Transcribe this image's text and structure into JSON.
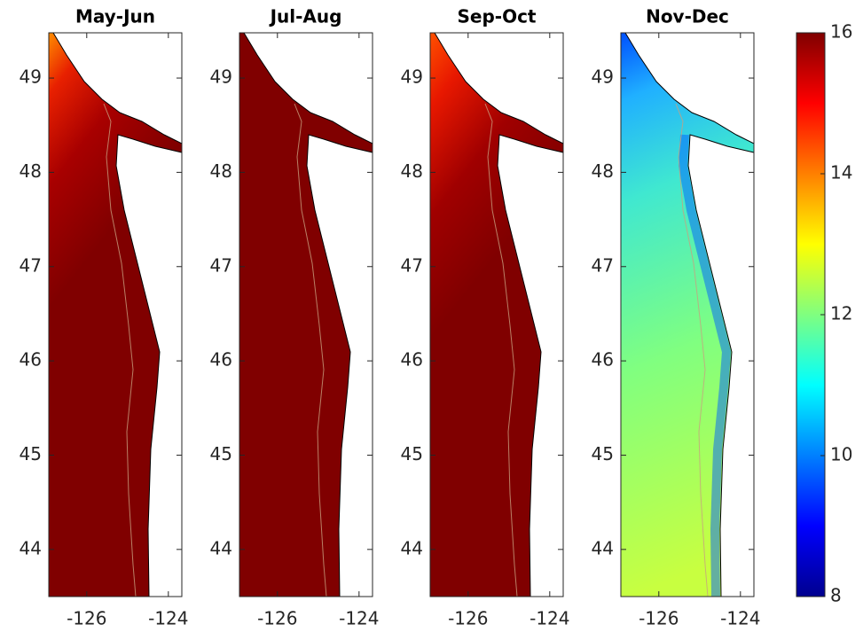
{
  "panels": [
    {
      "title": "May-Jun"
    },
    {
      "title": "Jul-Aug"
    },
    {
      "title": "Sep-Oct"
    },
    {
      "title": "Nov-Dec"
    }
  ],
  "axes": {
    "xlim": [
      -126.93,
      -123.67
    ],
    "ylim": [
      43.5,
      49.48
    ],
    "xticks": [
      -126,
      -124
    ],
    "yticks": [
      44,
      45,
      46,
      47,
      48,
      49
    ]
  },
  "colorbar": {
    "lim": [
      8,
      16
    ],
    "ticks": [
      8,
      10,
      12,
      14,
      16
    ]
  }
}
